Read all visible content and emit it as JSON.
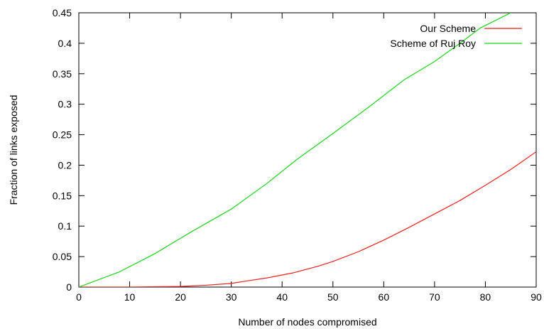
{
  "chart_data": {
    "type": "line",
    "xlabel": "Number of nodes compromised",
    "ylabel": "Fraction of links exposed",
    "xlim": [
      0,
      90
    ],
    "ylim": [
      0,
      0.45
    ],
    "x_ticks": [
      "0",
      "10",
      "20",
      "30",
      "40",
      "50",
      "60",
      "70",
      "80",
      "90"
    ],
    "y_ticks": [
      "0",
      "0.05",
      "0.1",
      "0.15",
      "0.2",
      "0.25",
      "0.3",
      "0.35",
      "0.4",
      "0.45"
    ],
    "grid": false,
    "legend_position": "top-right",
    "series": [
      {
        "name": "Our Scheme",
        "color": "#e8201f",
        "x": [
          0,
          10,
          20,
          25,
          30,
          33,
          37,
          42,
          47,
          50,
          55,
          60,
          65,
          70,
          75,
          80,
          85,
          90
        ],
        "y": [
          0,
          0,
          0.001,
          0.003,
          0.006,
          0.01,
          0.015,
          0.023,
          0.034,
          0.042,
          0.058,
          0.077,
          0.098,
          0.12,
          0.142,
          0.167,
          0.193,
          0.222
        ]
      },
      {
        "name": "Scheme of Ruj Roy",
        "color": "#1fd11f",
        "x": [
          0,
          8,
          15,
          22,
          30,
          37,
          43,
          50,
          57,
          64,
          70,
          75,
          79,
          85
        ],
        "y": [
          0,
          0.025,
          0.055,
          0.09,
          0.128,
          0.17,
          0.21,
          0.252,
          0.295,
          0.34,
          0.37,
          0.4,
          0.425,
          0.45
        ]
      }
    ]
  }
}
